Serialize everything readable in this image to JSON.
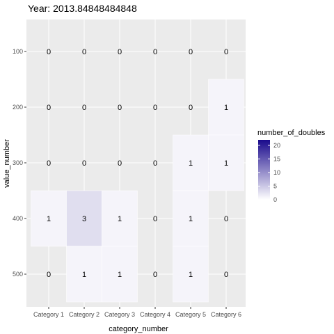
{
  "chart_data": {
    "type": "heatmap",
    "title": "Year: 2013.84848484848",
    "xlabel": "category_number",
    "ylabel": "value_number",
    "categories": [
      "Category 1",
      "Category 2",
      "Category 3",
      "Category 4",
      "Category 5",
      "Category 6"
    ],
    "y_values": [
      100,
      200,
      300,
      400,
      500
    ],
    "cells": [
      {
        "x": "Category 1",
        "y": 100,
        "value": 0
      },
      {
        "x": "Category 2",
        "y": 100,
        "value": 0
      },
      {
        "x": "Category 3",
        "y": 100,
        "value": 0
      },
      {
        "x": "Category 4",
        "y": 100,
        "value": 0
      },
      {
        "x": "Category 5",
        "y": 100,
        "value": 0
      },
      {
        "x": "Category 6",
        "y": 100,
        "value": 0
      },
      {
        "x": "Category 1",
        "y": 200,
        "value": 0
      },
      {
        "x": "Category 2",
        "y": 200,
        "value": 0
      },
      {
        "x": "Category 3",
        "y": 200,
        "value": 0
      },
      {
        "x": "Category 4",
        "y": 200,
        "value": 0
      },
      {
        "x": "Category 5",
        "y": 200,
        "value": 0
      },
      {
        "x": "Category 6",
        "y": 200,
        "value": 1
      },
      {
        "x": "Category 1",
        "y": 300,
        "value": 0
      },
      {
        "x": "Category 2",
        "y": 300,
        "value": 0
      },
      {
        "x": "Category 3",
        "y": 300,
        "value": 0
      },
      {
        "x": "Category 4",
        "y": 300,
        "value": 0
      },
      {
        "x": "Category 5",
        "y": 300,
        "value": 1
      },
      {
        "x": "Category 6",
        "y": 300,
        "value": 1
      },
      {
        "x": "Category 1",
        "y": 400,
        "value": 1
      },
      {
        "x": "Category 2",
        "y": 400,
        "value": 3
      },
      {
        "x": "Category 3",
        "y": 400,
        "value": 1
      },
      {
        "x": "Category 4",
        "y": 400,
        "value": 0
      },
      {
        "x": "Category 5",
        "y": 400,
        "value": 1
      },
      {
        "x": "Category 6",
        "y": 400,
        "value": 0
      },
      {
        "x": "Category 1",
        "y": 500,
        "value": 0
      },
      {
        "x": "Category 2",
        "y": 500,
        "value": 1
      },
      {
        "x": "Category 3",
        "y": 500,
        "value": 1
      },
      {
        "x": "Category 4",
        "y": 500,
        "value": 0
      },
      {
        "x": "Category 5",
        "y": 500,
        "value": 1
      },
      {
        "x": "Category 6",
        "y": 500,
        "value": 0
      }
    ],
    "legend": {
      "title": "number_of_doubles",
      "breaks": [
        0,
        5,
        10,
        15,
        20
      ],
      "range": [
        0,
        22
      ],
      "low_color": "#ffffff",
      "high_color": "#1a0a8c",
      "position": "right"
    },
    "panel_background": "#ebebeb",
    "grid": true
  }
}
